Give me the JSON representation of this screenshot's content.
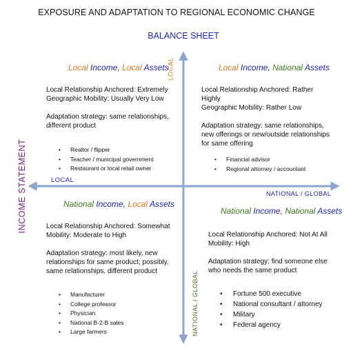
{
  "title": "EXPOSURE AND ADAPTATION TO REGIONAL ECONOMIC CHANGE",
  "axes": {
    "vertical_title": "BALANCE SHEET",
    "horizontal_title": "INCOME STATEMENT",
    "top_label": "LOCAL",
    "left_label": "LOCAL",
    "right_label": "NATIONAL / GLOBAL",
    "bottom_label": "NATIONAL / GLOBAL"
  },
  "colors": {
    "axis": "#8aa6cf",
    "orange": "#e07a1e",
    "blue": "#1f22c9",
    "green": "#3f7a1f",
    "purple": "#7a2290"
  },
  "quadrants": {
    "top_left": {
      "h1": "Local",
      "h2": "Income,",
      "h3": "Local",
      "h4": "Assets",
      "line1": "Local Relationship Anchored: Extremely",
      "line2": "Geographic Mobility: Usually Very Low",
      "strategy": "Adaptation strategy: same relationships, different product",
      "items": [
        "Realtor / flipper",
        "Teacher / municipal government",
        "Restaurant or local retail owner"
      ]
    },
    "top_right": {
      "h1": "Local",
      "h2": "Income,",
      "h3": "National",
      "h4": "Assets",
      "line1": "Local Relationship Anchored: Rather Highly",
      "line2": "Geographic Mobility: Rather Low",
      "strategy": "Adaptation strategy: same relationships, new offerings or new/outside relationships for same offering",
      "items": [
        "Financial advisor",
        "Regional attorney / accountant"
      ]
    },
    "bottom_left": {
      "h1": "National",
      "h2": "Income,",
      "h3": "Local",
      "h4": "Assets",
      "line1": "Local Relationship Anchored: Somewhat",
      "line2": "Mobility: Moderate to High",
      "strategy": "Adaptation strategy:  most likely, new relationships for same product; possibly, same relationships, different product",
      "items": [
        "Manufacturer",
        "College professor",
        "Physician",
        "National B-2-B sales",
        "Large farmers"
      ]
    },
    "bottom_right": {
      "h1": "National",
      "h2": "Income,",
      "h3": "National",
      "h4": "Assets",
      "line1": "Local Relationship Anchored: Not At All",
      "line2": "Mobility: High",
      "strategy": "Adaptation strategy: find someone else who needs the same product",
      "items": [
        "Fortune 500 executive",
        "National consultant / attorney",
        "Military",
        "Federal agency"
      ]
    }
  }
}
